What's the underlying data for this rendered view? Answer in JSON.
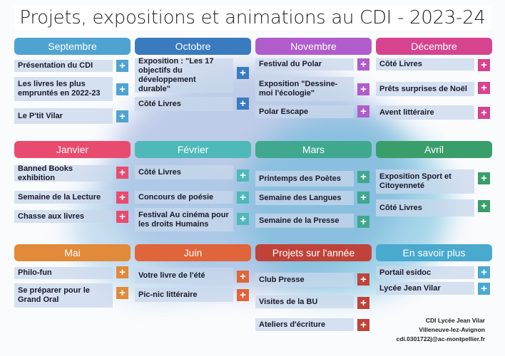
{
  "title": "Projets, expositions et animations au CDI - 2023-24",
  "icons": {
    "add": "plus-icon"
  },
  "months": [
    {
      "label": "Septembre",
      "color": "#4ea3d0",
      "items": [
        "Présentation du CDI",
        "Les livres les plus empruntés en 2022-23",
        "Le P'tit Vilar"
      ]
    },
    {
      "label": "Octobre",
      "color": "#3a7bbf",
      "items": [
        "Exposition : \"Les 17 objectifs du développement durable\"",
        "Côté Livres"
      ]
    },
    {
      "label": "Novembre",
      "color": "#b05ccc",
      "items": [
        "Festival du Polar",
        "Exposition \"Dessine-moi l'écologie\"",
        "Polar Escape"
      ]
    },
    {
      "label": "Décembre",
      "color": "#d6438f",
      "items": [
        "Côté Livres",
        "Prêts surprises de Noël",
        "Avent littéraire"
      ]
    },
    {
      "label": "Janvier",
      "color": "#e94b6e",
      "items": [
        "Banned Books exhibition",
        "Semaine de la Lecture",
        "Chasse aux livres"
      ]
    },
    {
      "label": "Février",
      "color": "#4fb8b8",
      "items": [
        "Côté Livres",
        "Concours de poésie",
        "Festival Au cinéma pour les droits Humains"
      ]
    },
    {
      "label": "Mars",
      "color": "#3fa88f",
      "items": [
        "Printemps des Poètes",
        "Semaine des Langues",
        "Semaine de la Presse"
      ]
    },
    {
      "label": "Avril",
      "color": "#3a9e6a",
      "items": [
        "Exposition Sport et Citoyenneté",
        "Côté Livres"
      ]
    },
    {
      "label": "Mai",
      "color": "#e08a3a",
      "items": [
        "Philo-fun",
        "Se préparer pour le Grand Oral"
      ]
    },
    {
      "label": "Juin",
      "color": "#e0653a",
      "items": [
        "Votre livre de l'été",
        "Pic-nic littéraire"
      ]
    },
    {
      "label": "Projets sur l'année",
      "color": "#c0433a",
      "items": [
        "Club Presse",
        "Visites de la BU",
        "Ateliers d'écriture"
      ]
    },
    {
      "label": "En savoir plus",
      "color": "#4aa9cf",
      "items": [
        "Portail esidoc",
        "Lycée Jean Vilar"
      ]
    }
  ],
  "footer": {
    "line1": "CDI Lycée Jean Vilar",
    "line2": "Villeneuve-lez-Avignon",
    "line3": "cdi.0301722j@ac-montpellier.fr"
  }
}
